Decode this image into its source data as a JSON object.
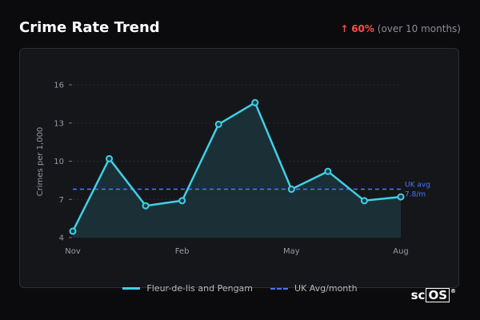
{
  "header": {
    "title": "Crime Rate Trend",
    "change_arrow": "↑",
    "change_pct": "60%",
    "change_note": "(over 10 months)"
  },
  "chart_data": {
    "type": "line",
    "title": "Crime Rate Trend",
    "ylabel": "Crimes per 1,000",
    "xlabel": "",
    "ylim": [
      4,
      16
    ],
    "yticks": [
      4,
      7,
      10,
      13,
      16
    ],
    "x_tick_labels": [
      "Nov",
      "Feb",
      "May",
      "Aug"
    ],
    "x_tick_positions": [
      0,
      3,
      6,
      9
    ],
    "grid": true,
    "series": [
      {
        "name": "Fleur-de-lis and Pengam",
        "color": "#3fd0e6",
        "values": [
          4.5,
          10.2,
          6.5,
          6.9,
          12.9,
          14.6,
          7.8,
          9.2,
          6.9,
          7.2
        ]
      }
    ],
    "reference_line": {
      "name": "UK Avg/month",
      "value": 7.8,
      "label_line1": "UK avg",
      "label_line2": "7.8/m",
      "color": "#4b78ff"
    }
  },
  "legend": {
    "series_label": "Fleur-de-lis and Pengam",
    "reference_label": "UK Avg/month"
  },
  "logo": {
    "text_plain": "sc",
    "text_boxed": "OS",
    "reg_mark": "®"
  }
}
